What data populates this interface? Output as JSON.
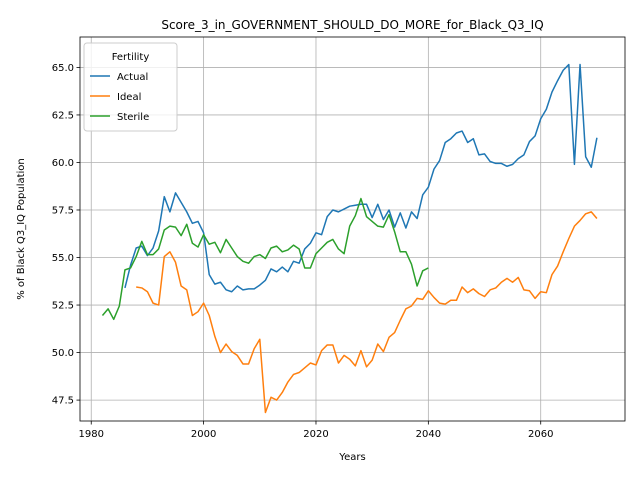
{
  "chart_data": {
    "type": "line",
    "title": "Score_3_in_GOVERNMENT_SHOULD_DO_MORE_for_Black_Q3_IQ",
    "xlabel": "Years",
    "ylabel": "% of Black Q3_IQ Population",
    "xlim": [
      1978,
      2075
    ],
    "ylim": [
      46.4,
      66.6
    ],
    "xticks": [
      1980,
      2000,
      2020,
      2040,
      2060
    ],
    "yticks": [
      47.5,
      50.0,
      52.5,
      55.0,
      57.5,
      60.0,
      62.5,
      65.0
    ],
    "grid": true,
    "legend": {
      "title": "Fertility",
      "placement": "top-left"
    },
    "series": [
      {
        "name": "Actual",
        "color": "#1f77b4",
        "x": [
          1986,
          1987,
          1988,
          1989,
          1990,
          1991,
          1992,
          1993,
          1994,
          1995,
          1996,
          1997,
          1998,
          1999,
          2000,
          2001,
          2002,
          2003,
          2004,
          2005,
          2006,
          2007,
          2008,
          2009,
          2010,
          2011,
          2012,
          2013,
          2014,
          2015,
          2016,
          2017,
          2018,
          2019,
          2020,
          2021,
          2022,
          2023,
          2024,
          2025,
          2026,
          2027,
          2028,
          2029,
          2030,
          2031,
          2032,
          2033,
          2034,
          2035,
          2036,
          2037,
          2038,
          2039,
          2040,
          2041,
          2042,
          2043,
          2044,
          2045,
          2046,
          2047,
          2048,
          2049,
          2050,
          2051,
          2052,
          2053,
          2054,
          2055,
          2056,
          2057,
          2058,
          2059,
          2060,
          2061,
          2062,
          2063,
          2064,
          2065,
          2066,
          2067,
          2068,
          2069,
          2070
        ],
        "y": [
          53.4,
          54.6,
          55.5,
          55.6,
          55.1,
          55.5,
          56.4,
          58.2,
          57.4,
          58.4,
          57.9,
          57.4,
          56.8,
          56.9,
          56.3,
          54.1,
          53.6,
          53.7,
          53.3,
          53.2,
          53.5,
          53.3,
          53.35,
          53.35,
          53.55,
          53.8,
          54.4,
          54.25,
          54.5,
          54.25,
          54.8,
          54.7,
          55.45,
          55.75,
          56.3,
          56.2,
          57.15,
          57.5,
          57.4,
          57.55,
          57.7,
          57.75,
          57.8,
          57.8,
          57.1,
          57.8,
          57.0,
          57.5,
          56.6,
          57.35,
          56.55,
          57.4,
          57.05,
          58.3,
          58.7,
          59.65,
          60.1,
          61.05,
          61.25,
          61.55,
          61.65,
          61.05,
          61.25,
          60.4,
          60.45,
          60.05,
          59.95,
          59.95,
          59.8,
          59.9,
          60.2,
          60.4,
          61.1,
          61.4,
          62.3,
          62.8,
          63.7,
          64.3,
          64.85,
          65.15,
          59.9,
          65.15,
          60.3,
          59.75,
          61.3
        ]
      },
      {
        "name": "Ideal",
        "color": "#ff7f0e",
        "x": [
          1988,
          1989,
          1990,
          1991,
          1992,
          1993,
          1994,
          1995,
          1996,
          1997,
          1998,
          1999,
          2000,
          2001,
          2002,
          2003,
          2004,
          2005,
          2006,
          2007,
          2008,
          2009,
          2010,
          2011,
          2012,
          2013,
          2014,
          2015,
          2016,
          2017,
          2018,
          2019,
          2020,
          2021,
          2022,
          2023,
          2024,
          2025,
          2026,
          2027,
          2028,
          2029,
          2030,
          2031,
          2032,
          2033,
          2034,
          2035,
          2036,
          2037,
          2038,
          2039,
          2040,
          2041,
          2042,
          2043,
          2044,
          2045,
          2046,
          2047,
          2048,
          2049,
          2050,
          2051,
          2052,
          2053,
          2054,
          2055,
          2056,
          2057,
          2058,
          2059,
          2060,
          2061,
          2062,
          2063,
          2064,
          2065,
          2066,
          2067,
          2068,
          2069,
          2070
        ],
        "y": [
          53.45,
          53.4,
          53.2,
          52.6,
          52.5,
          55.05,
          55.3,
          54.75,
          53.5,
          53.3,
          51.95,
          52.15,
          52.6,
          51.95,
          50.85,
          50.0,
          50.45,
          50.05,
          49.85,
          49.4,
          49.4,
          50.2,
          50.7,
          46.85,
          47.65,
          47.5,
          47.9,
          48.45,
          48.85,
          48.95,
          49.2,
          49.45,
          49.35,
          50.1,
          50.4,
          50.4,
          49.45,
          49.85,
          49.65,
          49.3,
          50.1,
          49.25,
          49.6,
          50.45,
          50.05,
          50.8,
          51.05,
          51.7,
          52.3,
          52.45,
          52.85,
          52.8,
          53.25,
          52.9,
          52.6,
          52.55,
          52.75,
          52.75,
          53.45,
          53.15,
          53.35,
          53.1,
          52.95,
          53.3,
          53.4,
          53.7,
          53.9,
          53.7,
          53.95,
          53.3,
          53.25,
          52.85,
          53.2,
          53.15,
          54.1,
          54.55,
          55.3,
          56.0,
          56.65,
          56.95,
          57.3,
          57.4,
          57.05
        ]
      },
      {
        "name": "Sterile",
        "color": "#2ca02c",
        "x": [
          1982,
          1983,
          1984,
          1985,
          1986,
          1987,
          1988,
          1989,
          1990,
          1991,
          1992,
          1993,
          1994,
          1995,
          1996,
          1997,
          1998,
          1999,
          2000,
          2001,
          2002,
          2003,
          2004,
          2005,
          2006,
          2007,
          2008,
          2009,
          2010,
          2011,
          2012,
          2013,
          2014,
          2015,
          2016,
          2017,
          2018,
          2019,
          2020,
          2021,
          2022,
          2023,
          2024,
          2025,
          2026,
          2027,
          2028,
          2029,
          2030,
          2031,
          2032,
          2033,
          2034,
          2035,
          2036,
          2037,
          2038,
          2039,
          2040
        ],
        "y": [
          51.95,
          52.3,
          51.75,
          52.45,
          54.35,
          54.45,
          55.05,
          55.85,
          55.15,
          55.15,
          55.45,
          56.45,
          56.65,
          56.6,
          56.15,
          56.75,
          55.75,
          55.55,
          56.2,
          55.7,
          55.8,
          55.25,
          55.95,
          55.5,
          55.05,
          54.8,
          54.7,
          55.05,
          55.15,
          54.95,
          55.5,
          55.6,
          55.3,
          55.4,
          55.65,
          55.45,
          54.45,
          54.45,
          55.2,
          55.5,
          55.8,
          55.95,
          55.45,
          55.2,
          56.65,
          57.2,
          58.1,
          57.15,
          56.9,
          56.65,
          56.6,
          57.25,
          56.35,
          55.3,
          55.3,
          54.65,
          53.5,
          54.3,
          54.45
        ]
      }
    ]
  }
}
